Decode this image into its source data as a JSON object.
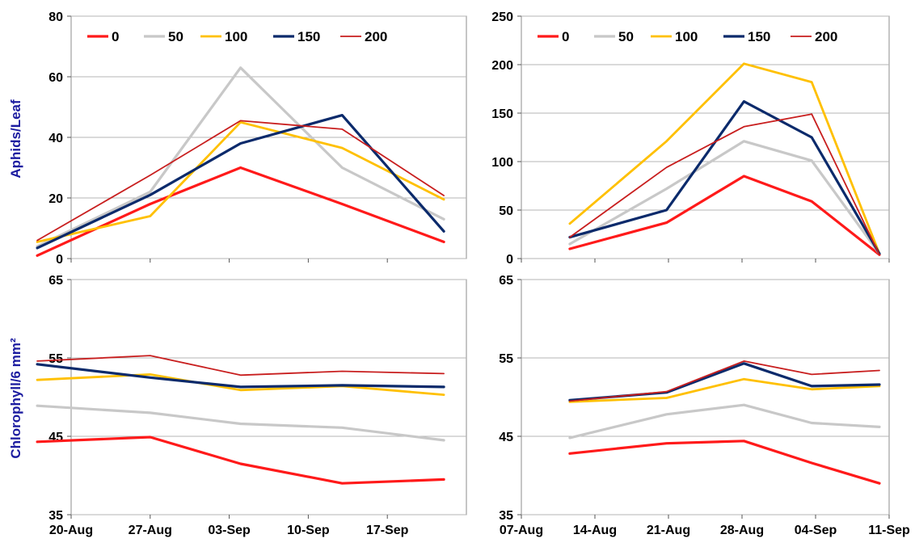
{
  "legend": {
    "entries": [
      "0",
      "50",
      "100",
      "150",
      "200"
    ],
    "colors": [
      "#ff1a1a",
      "#c8c8c8",
      "#ffc000",
      "#0b2a6b",
      "#c81e1e"
    ]
  },
  "ylabels": {
    "aphids": "Aphids/Leaf",
    "chlorophyll": "Chlorophyll/6 mm²"
  },
  "chart_data": [
    {
      "type": "line",
      "panel": "top-left",
      "ylabel": "Aphids/Leaf",
      "x": [
        "2020-08-17",
        "2020-08-27",
        "2020-09-04",
        "2020-09-13",
        "2020-09-22"
      ],
      "xticks": [
        "20-Aug",
        "27-Aug",
        "03-Sep",
        "10-Sep",
        "17-Sep"
      ],
      "xlim": [
        "2020-08-20",
        "2020-09-24"
      ],
      "ylim": [
        0,
        80
      ],
      "yticks": [
        0,
        20,
        40,
        60,
        80
      ],
      "grid": true,
      "legend_position": "top",
      "series": [
        {
          "name": "0",
          "values": [
            1,
            18,
            30,
            18,
            5.5
          ]
        },
        {
          "name": "50",
          "values": [
            4,
            22,
            63,
            30,
            13
          ]
        },
        {
          "name": "100",
          "values": [
            5.5,
            14,
            45,
            36.5,
            19.5
          ]
        },
        {
          "name": "150",
          "values": [
            3.5,
            21,
            38,
            47.3,
            9
          ]
        },
        {
          "name": "200",
          "values": [
            6,
            27.5,
            45.5,
            42.7,
            20.8
          ]
        }
      ]
    },
    {
      "type": "line",
      "panel": "top-right",
      "x": [
        "2020-08-09",
        "2020-08-19",
        "2020-08-27",
        "2020-09-03",
        "2020-09-10"
      ],
      "xticks": [
        "07-Aug",
        "14-Aug",
        "21-Aug",
        "28-Aug",
        "04-Sep",
        "11-Sep"
      ],
      "xlim": [
        "2020-08-04",
        "2020-09-11"
      ],
      "ylim": [
        0,
        250
      ],
      "yticks": [
        0,
        50,
        100,
        150,
        200,
        250
      ],
      "grid": true,
      "legend_position": "top",
      "series": [
        {
          "name": "0",
          "values": [
            10,
            37,
            85,
            59,
            4
          ]
        },
        {
          "name": "50",
          "values": [
            15,
            72,
            121,
            101,
            5
          ]
        },
        {
          "name": "100",
          "values": [
            36,
            121,
            201,
            182,
            5
          ]
        },
        {
          "name": "150",
          "values": [
            22,
            50,
            162,
            125,
            5
          ]
        },
        {
          "name": "200",
          "values": [
            22,
            94,
            136,
            149,
            4
          ]
        }
      ]
    },
    {
      "type": "line",
      "panel": "bottom-left",
      "ylabel": "Chlorophyll/6 mm²",
      "x": [
        "2020-08-17",
        "2020-08-27",
        "2020-09-04",
        "2020-09-13",
        "2020-09-22"
      ],
      "xticks": [
        "20-Aug",
        "27-Aug",
        "03-Sep",
        "10-Sep",
        "17-Sep"
      ],
      "xlim": [
        "2020-08-20",
        "2020-09-24"
      ],
      "ylim": [
        35,
        65
      ],
      "yticks": [
        35,
        45,
        55,
        65
      ],
      "grid": true,
      "series": [
        {
          "name": "0",
          "values": [
            44.3,
            44.9,
            41.5,
            39,
            39.5
          ]
        },
        {
          "name": "50",
          "values": [
            48.9,
            48,
            46.6,
            46.1,
            44.5
          ]
        },
        {
          "name": "100",
          "values": [
            52.2,
            52.9,
            50.9,
            51.4,
            50.3
          ]
        },
        {
          "name": "150",
          "values": [
            54.2,
            52.5,
            51.3,
            51.5,
            51.3
          ]
        },
        {
          "name": "200",
          "values": [
            54.6,
            55.3,
            52.8,
            53.3,
            53
          ]
        }
      ]
    },
    {
      "type": "line",
      "panel": "bottom-right",
      "x": [
        "2020-08-09",
        "2020-08-19",
        "2020-08-27",
        "2020-09-03",
        "2020-09-10"
      ],
      "xticks": [
        "07-Aug",
        "14-Aug",
        "21-Aug",
        "28-Aug",
        "04-Sep",
        "11-Sep"
      ],
      "xlim": [
        "2020-08-04",
        "2020-09-11"
      ],
      "ylim": [
        35,
        65
      ],
      "yticks": [
        35,
        45,
        55,
        65
      ],
      "grid": true,
      "series": [
        {
          "name": "0",
          "values": [
            42.8,
            44.1,
            44.4,
            41.6,
            39
          ]
        },
        {
          "name": "50",
          "values": [
            44.8,
            47.8,
            49,
            46.7,
            46.2
          ]
        },
        {
          "name": "100",
          "values": [
            49.4,
            49.9,
            52.3,
            51,
            51.4
          ]
        },
        {
          "name": "150",
          "values": [
            49.6,
            50.6,
            54.3,
            51.4,
            51.6
          ]
        },
        {
          "name": "200",
          "values": [
            49.5,
            50.7,
            54.6,
            52.9,
            53.4
          ]
        }
      ]
    }
  ]
}
